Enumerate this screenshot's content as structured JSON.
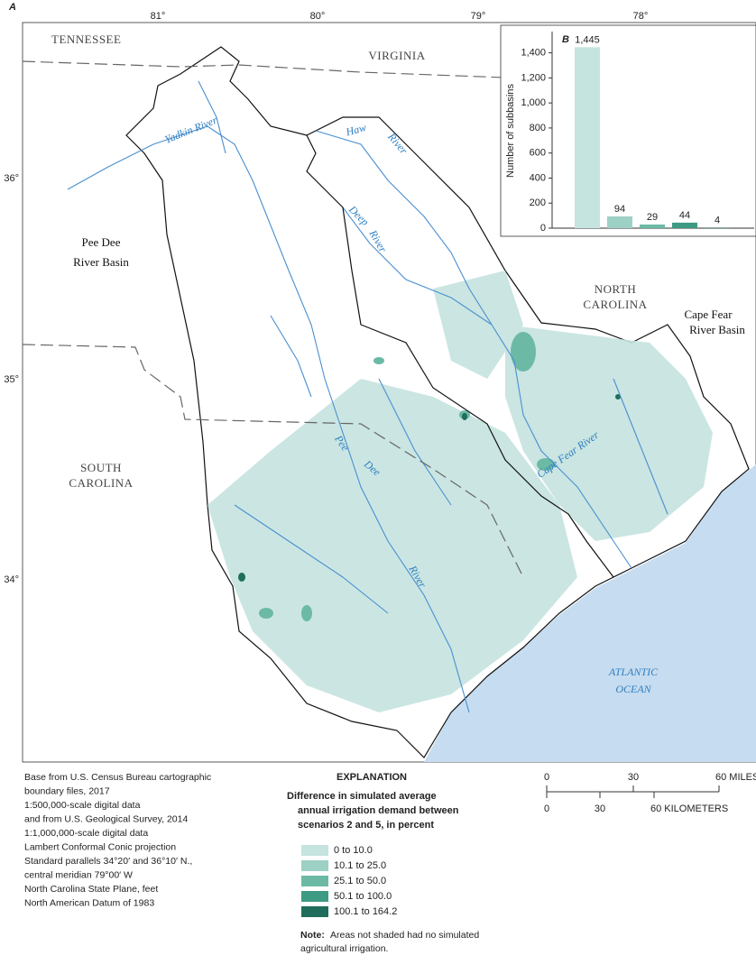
{
  "panel_label": "A",
  "map": {
    "lon_labels": [
      "81°",
      "80°",
      "79°",
      "78°"
    ],
    "lat_labels": [
      "36°",
      "35°",
      "34°"
    ],
    "states": {
      "tennessee": "TENNESSEE",
      "virginia": "VIRGINIA",
      "north_carolina": [
        "NORTH",
        "CAROLINA"
      ],
      "south_carolina": [
        "SOUTH",
        "CAROLINA"
      ]
    },
    "basins": {
      "pee_dee": [
        "Pee Dee",
        "River Basin"
      ],
      "cape_fear": [
        "Cape Fear",
        "River Basin"
      ]
    },
    "ocean": [
      "ATLANTIC",
      "OCEAN"
    ],
    "rivers": {
      "yadkin": "Yadkin River",
      "haw": [
        "Haw",
        "River"
      ],
      "deep": [
        "Deep",
        "River"
      ],
      "pee_dee": [
        "Pee",
        "Dee",
        "River"
      ],
      "cape_fear": "Cape Fear River"
    }
  },
  "chart_data": {
    "type": "bar",
    "panel_label": "B",
    "y_label": "Number of subbasins",
    "categories": [
      null,
      null,
      null,
      null,
      null
    ],
    "values": [
      1445,
      94,
      29,
      44,
      4
    ],
    "value_labels": [
      "1,445",
      "94",
      "29",
      "44",
      "4"
    ],
    "colors": [
      "#c5e3df",
      "#9dd1c5",
      "#6cbaa5",
      "#3d9a83",
      "#1f6e5b"
    ],
    "ylim": [
      0,
      1570
    ],
    "yticks": [
      0,
      200,
      400,
      600,
      800,
      {
        "value": 1000,
        "label": "1,000"
      },
      {
        "value": 1200,
        "label": "1,200"
      },
      {
        "value": 1400,
        "label": "1,400"
      }
    ]
  },
  "explanation": {
    "title": "EXPLANATION",
    "subtitle": [
      "Difference in simulated average",
      "annual irrigation demand between",
      "scenarios 2 and 5, in percent"
    ],
    "items": [
      {
        "label": "0 to 10.0",
        "color": "#c5e3df"
      },
      {
        "label": "10.1 to 25.0",
        "color": "#9dd1c5"
      },
      {
        "label": "25.1 to 50.0",
        "color": "#6cbaa5"
      },
      {
        "label": "50.1 to 100.0",
        "color": "#3d9a83"
      },
      {
        "label": "100.1 to 164.2",
        "color": "#1f6e5b"
      }
    ],
    "note_label": "Note:",
    "note": [
      "Areas not shaded had no simulated",
      "agricultural irrigation."
    ]
  },
  "source_notes": [
    "Base from U.S. Census Bureau cartographic",
    "boundary files, 2017",
    "1:500,000-scale digital data",
    "and from U.S. Geological Survey, 2014",
    "1:1,000,000-scale digital data",
    "Lambert Conformal Conic projection",
    "Standard parallels 34°20′ and 36°10′ N.,",
    "central meridian 79°00′ W",
    "North Carolina State Plane, feet",
    "North American Datum of 1983"
  ],
  "scale_bar": {
    "miles": [
      "0",
      "30",
      "60 MILES"
    ],
    "kilometers": [
      "0",
      "30",
      "60 KILOMETERS"
    ]
  }
}
